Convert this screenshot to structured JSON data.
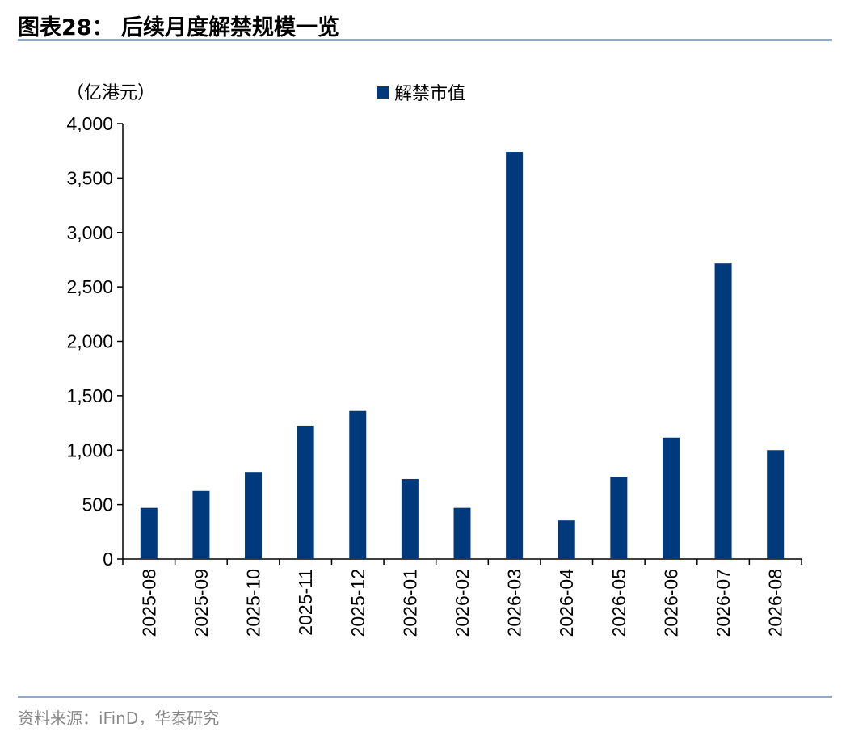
{
  "title": "图表28：  后续月度解禁规模一览",
  "source": "资料来源：iFinD，华泰研究",
  "chart_data": {
    "type": "bar",
    "unit_label": "（亿港元）",
    "categories": [
      "2025-08",
      "2025-09",
      "2025-10",
      "2025-11",
      "2025-12",
      "2026-01",
      "2026-02",
      "2026-03",
      "2026-04",
      "2026-05",
      "2026-06",
      "2026-07",
      "2026-08"
    ],
    "series": [
      {
        "name": "解禁市值",
        "color": "#003a7c",
        "values": [
          470,
          625,
          800,
          1225,
          1360,
          735,
          470,
          3740,
          355,
          755,
          1115,
          2715,
          1000
        ]
      }
    ],
    "ylim": [
      0,
      4000
    ],
    "yticks": [
      0,
      500,
      1000,
      1500,
      2000,
      2500,
      3000,
      3500,
      4000
    ],
    "ytick_labels": [
      "0",
      "500",
      "1,000",
      "1,500",
      "2,000",
      "2,500",
      "3,000",
      "3,500",
      "4,000"
    ],
    "legend": "top-center",
    "grid": false
  }
}
